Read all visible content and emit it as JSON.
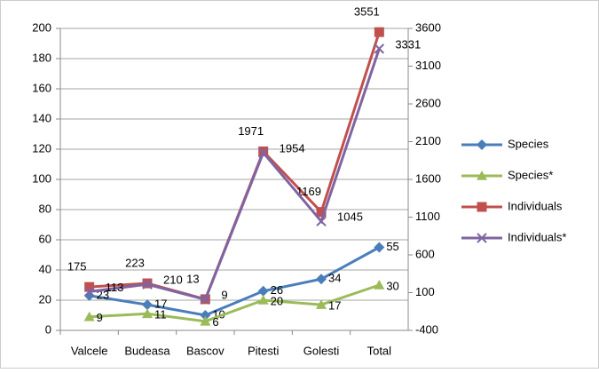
{
  "chart_data": {
    "type": "line",
    "categories": [
      "Valcele",
      "Budeasa",
      "Bascov",
      "Pitesti",
      "Golesti",
      "Total"
    ],
    "series": [
      {
        "name": "Species",
        "color": "#4a7ebb",
        "values": [
          23,
          17,
          10,
          26,
          34,
          55
        ]
      },
      {
        "name": "Species*",
        "color": "#9bbb59",
        "values": [
          9,
          11,
          6,
          20,
          17,
          30
        ]
      },
      {
        "name": "Individuals",
        "color": "#c0504d",
        "axis": "y2",
        "values": [
          175,
          223,
          13,
          1971,
          1169,
          3551
        ]
      },
      {
        "name": "Individuals*",
        "color": "#8064a2",
        "axis": "y2",
        "values": [
          113,
          210,
          9,
          1954,
          1045,
          3331
        ]
      }
    ],
    "ylim": [
      0,
      200
    ],
    "yticks": [
      0,
      20,
      40,
      60,
      80,
      100,
      120,
      140,
      160,
      180,
      200
    ],
    "y2lim": [
      -400,
      3600
    ],
    "y2ticks": [
      -400,
      100,
      600,
      1100,
      1600,
      2100,
      2600,
      3100,
      3600
    ],
    "grid": true,
    "legend": "right"
  }
}
